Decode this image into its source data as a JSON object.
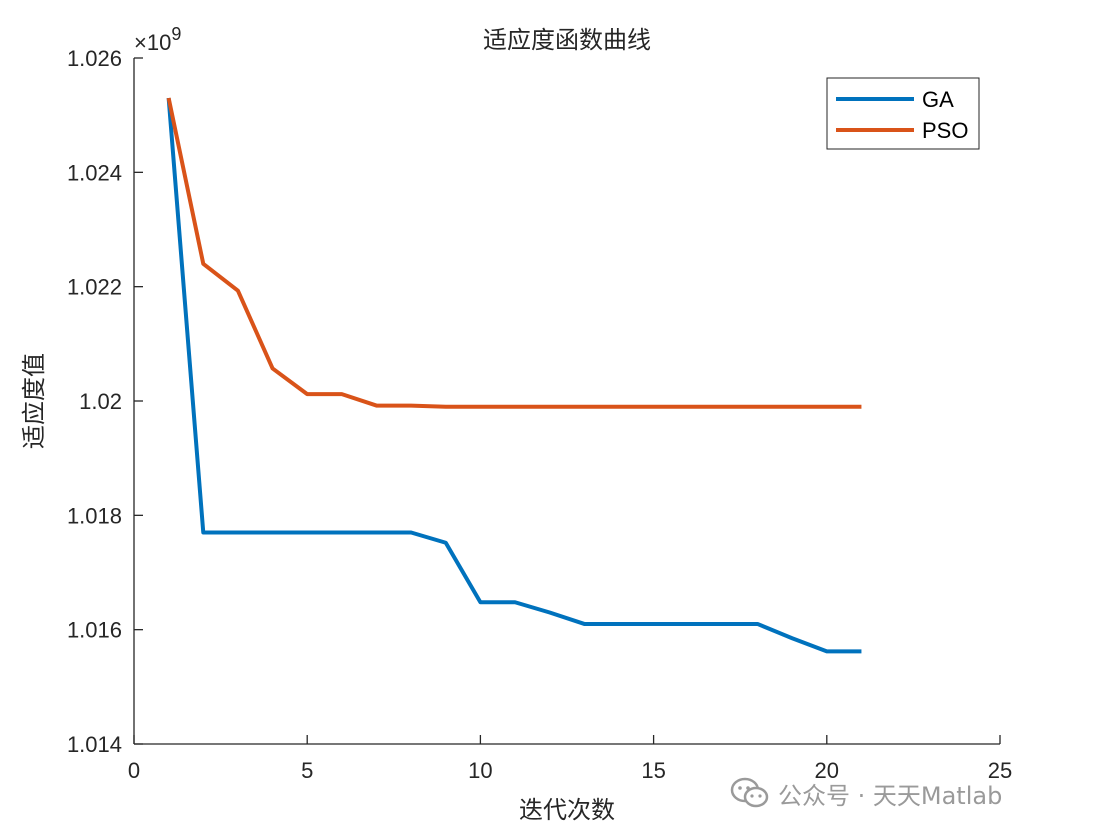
{
  "chart_data": {
    "type": "line",
    "title": "适应度函数曲线",
    "xlabel": "迭代次数",
    "ylabel": "适应度值",
    "y_exponent_label": "×10",
    "y_exponent_power": "9",
    "xlim": [
      0,
      25
    ],
    "ylim": [
      1.014,
      1.026
    ],
    "xticks": [
      "0",
      "5",
      "10",
      "15",
      "20",
      "25"
    ],
    "yticks": [
      "1.014",
      "1.016",
      "1.018",
      "1.02",
      "1.022",
      "1.024",
      "1.026"
    ],
    "grid": false,
    "legend_position": "top-right",
    "x": [
      1,
      2,
      3,
      4,
      5,
      6,
      7,
      8,
      9,
      10,
      11,
      12,
      13,
      14,
      15,
      16,
      17,
      18,
      19,
      20,
      21
    ],
    "series": [
      {
        "name": "GA",
        "color": "#0072BD",
        "values": [
          1.0253,
          1.0177,
          1.0177,
          1.0177,
          1.0177,
          1.0177,
          1.0177,
          1.0177,
          1.01752,
          1.01648,
          1.01648,
          1.0163,
          1.0161,
          1.0161,
          1.0161,
          1.0161,
          1.0161,
          1.0161,
          1.01585,
          1.01562,
          1.01562
        ]
      },
      {
        "name": "PSO",
        "color": "#D95319",
        "values": [
          1.0253,
          1.0224,
          1.02193,
          1.02057,
          1.02012,
          1.02012,
          1.01992,
          1.01992,
          1.0199,
          1.0199,
          1.0199,
          1.0199,
          1.0199,
          1.0199,
          1.0199,
          1.0199,
          1.0199,
          1.0199,
          1.0199,
          1.0199,
          1.0199
        ]
      }
    ]
  },
  "watermark": {
    "text": "公众号 · 天天Matlab",
    "icon": "wechat-icon"
  }
}
